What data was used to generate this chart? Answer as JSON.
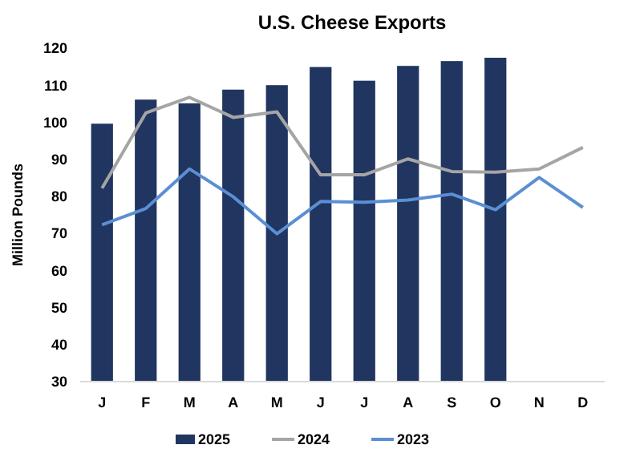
{
  "chart_data": {
    "type": "bar",
    "title": "U.S. Cheese Exports",
    "ylabel": "Million Pounds",
    "categories": [
      "J",
      "F",
      "M",
      "A",
      "M",
      "J",
      "J",
      "A",
      "S",
      "O",
      "N",
      "D"
    ],
    "series": [
      {
        "name": "2025",
        "color": "#203560",
        "values": [
          99.6,
          106.1,
          105.1,
          108.8,
          110,
          114.9,
          111.2,
          115.2,
          116.5,
          117.4,
          null,
          null
        ]
      },
      {
        "name": "2024",
        "type": "line",
        "color": "#a5a5a5",
        "values": [
          82.2,
          102.5,
          106.7,
          101.3,
          102.8,
          85.8,
          85.8,
          90.1,
          86.7,
          86.5,
          87.4,
          93.2
        ]
      },
      {
        "name": "2023",
        "type": "line",
        "color": "#5b8fd4",
        "values": [
          72.3,
          76.7,
          87.4,
          79.9,
          69.9,
          78.6,
          78.4,
          79,
          80.6,
          76.4,
          85.1,
          77
        ]
      }
    ],
    "ylim": [
      30,
      120
    ],
    "yticks": [
      30,
      40,
      50,
      60,
      70,
      80,
      90,
      100,
      110,
      120
    ],
    "grid": false,
    "legend": "bottom",
    "line_style": "solid",
    "marker": "none"
  }
}
